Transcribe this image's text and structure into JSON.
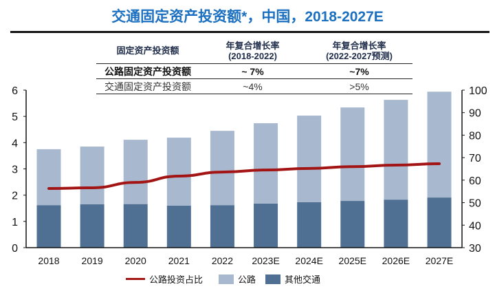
{
  "title": "交通固定资产投资额*，中国，2018-2027E",
  "table": {
    "headers": [
      "固定资产投资额",
      "年复合增长率\n(2018-2022)",
      "年复合增长率\n(2022-2027预测)"
    ],
    "header_lines": [
      [
        "固定资产投资额"
      ],
      [
        "年复合增长率",
        "(2018-2022)"
      ],
      [
        "年复合增长率",
        "(2022-2027预测)"
      ]
    ],
    "rows": [
      [
        "公路固定资产投资额",
        "~ 7%",
        "~7%"
      ],
      [
        "交通固定资产投资额",
        "~4%",
        ">5%"
      ]
    ]
  },
  "chart_data": {
    "type": "bar",
    "stacked": true,
    "categories": [
      "2018",
      "2019",
      "2020",
      "2021",
      "2022",
      "2023E",
      "2024E",
      "2025E",
      "2026E",
      "2027E"
    ],
    "series": [
      {
        "name": "其他交通",
        "type": "bar",
        "axis": "left",
        "color": "#4f7093",
        "values": [
          1.62,
          1.65,
          1.66,
          1.6,
          1.62,
          1.68,
          1.73,
          1.78,
          1.83,
          1.91
        ]
      },
      {
        "name": "公路",
        "type": "bar",
        "axis": "left",
        "color": "#a8b9cf",
        "values": [
          2.13,
          2.2,
          2.45,
          2.59,
          2.83,
          3.06,
          3.3,
          3.56,
          3.8,
          4.03
        ]
      },
      {
        "name": "公路投资占比",
        "type": "line",
        "axis": "right",
        "color": "#a31515",
        "values": [
          56.3,
          56.6,
          59.0,
          61.8,
          63.6,
          64.5,
          65.2,
          66.0,
          66.7,
          67.3
        ]
      }
    ],
    "legend_order": [
      "公路投资占比",
      "公路",
      "其他交通"
    ],
    "y_left": {
      "range": [
        0,
        6
      ],
      "ticks": [
        0,
        1,
        2,
        3,
        4,
        5,
        6
      ]
    },
    "y_right": {
      "range": [
        30,
        100
      ],
      "ticks": [
        30,
        40,
        50,
        60,
        70,
        80,
        90,
        100
      ]
    },
    "legend_position": "bottom",
    "grid": false
  }
}
